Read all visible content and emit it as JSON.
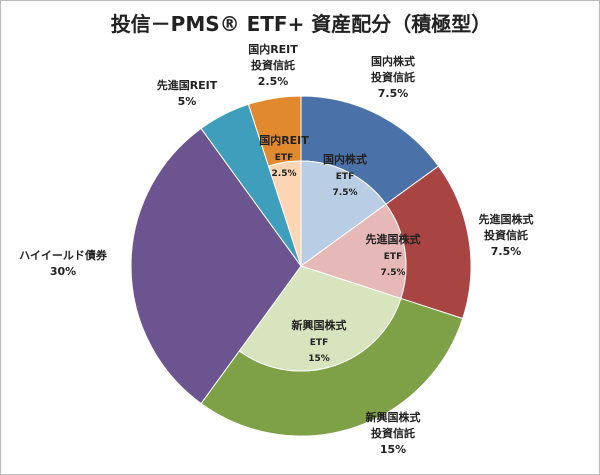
{
  "chart_data": {
    "type": "nested-pie",
    "title": "投信－PMS® ETF+ 資産配分（積極型）",
    "outer": {
      "labels": [
        [
          "国内株式",
          "投資信託"
        ],
        [
          "先進国株式",
          "投資信託"
        ],
        [
          "新興国株式",
          "投資信託"
        ],
        [
          "ハイイールド債券"
        ],
        [
          "先進国REIT"
        ],
        [
          "国内REIT",
          "投資信託"
        ]
      ],
      "values": [
        7.5,
        7.5,
        15,
        30,
        5,
        2.5
      ],
      "value_labels": [
        "7.5%",
        "7.5%",
        "15%",
        "30%",
        "5%",
        "2.5%"
      ],
      "colors": [
        "#4a72a8",
        "#a84442",
        "#7ea046",
        "#6c5490",
        "#3f9ebb",
        "#e0892e"
      ]
    },
    "inner": {
      "labels": [
        [
          "国内株式",
          "ETF"
        ],
        [
          "先進国株式",
          "ETF"
        ],
        [
          "新興国株式",
          "ETF"
        ],
        null,
        null,
        [
          "国内REIT",
          "ETF"
        ]
      ],
      "values": [
        7.5,
        7.5,
        15,
        null,
        null,
        2.5
      ],
      "value_labels": [
        "7.5%",
        "7.5%",
        "15%",
        null,
        null,
        "2.5%"
      ],
      "colors": [
        "#b9cde5",
        "#e6b9b8",
        "#d7e4bd",
        null,
        null,
        "#fcd5b5"
      ]
    }
  }
}
